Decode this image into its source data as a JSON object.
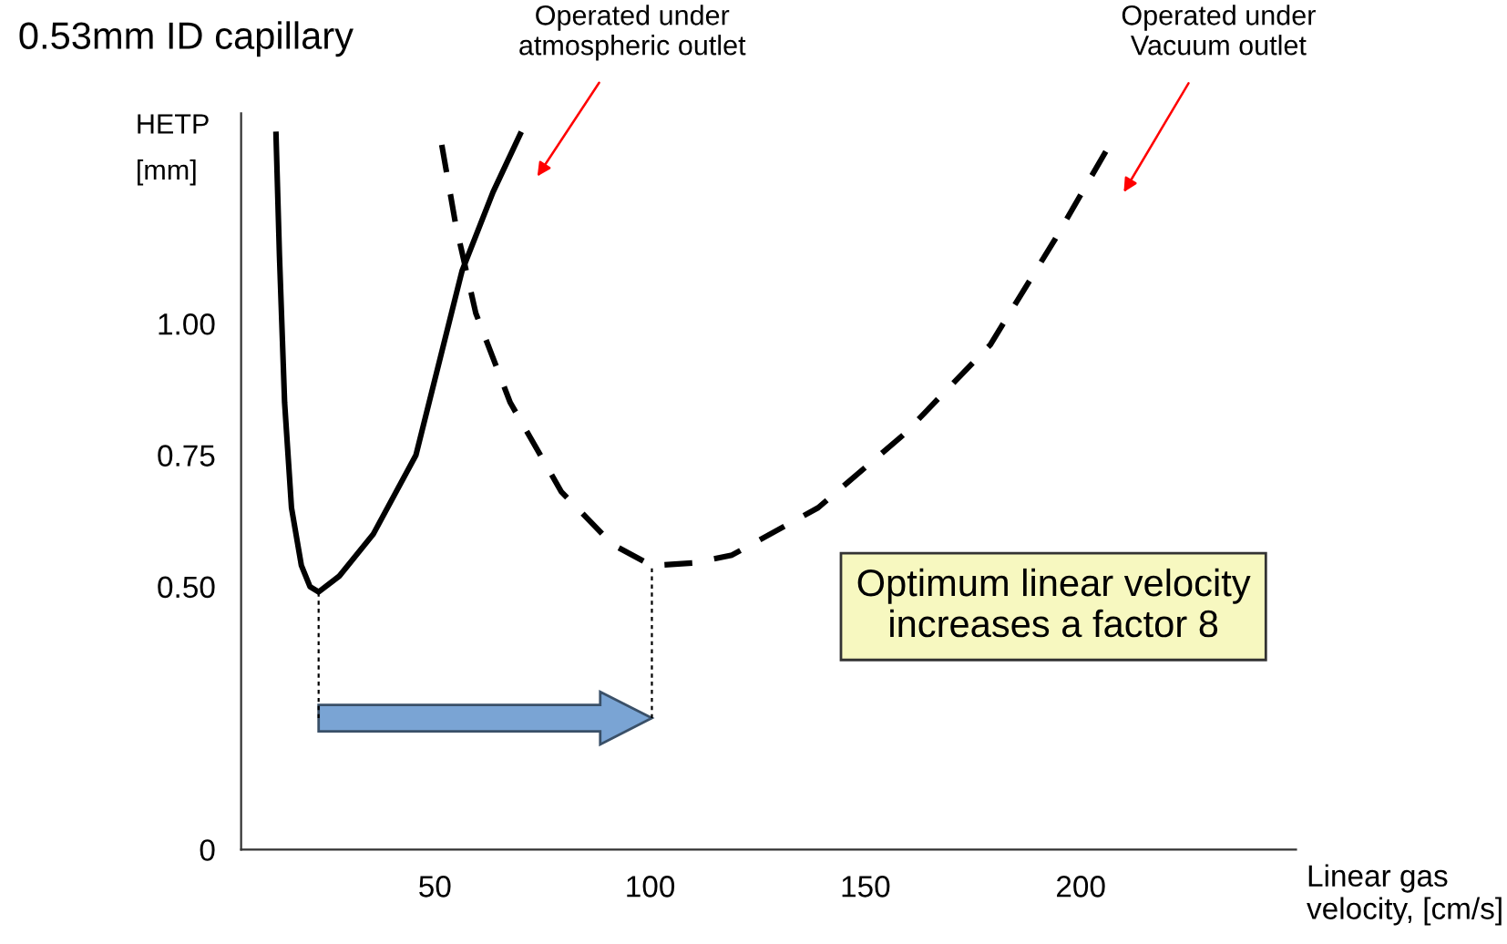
{
  "chart_data": {
    "type": "line",
    "title": "0.53mm ID capillary",
    "ylabel": "HETP\n[mm]",
    "xlabel": "Linear gas\nvelocity, [cm/s]",
    "series": [
      {
        "color": "#000000",
        "line_style": "solid",
        "x": [
          13.1,
          13.9,
          15.1,
          16.7,
          19,
          21,
          23,
          27.8,
          35.7,
          45.6,
          56.3,
          63.5,
          69.8
        ],
        "values": [
          1.36,
          1.13,
          0.85,
          0.65,
          0.54,
          0.5,
          0.49,
          0.52,
          0.6,
          0.75,
          1.1,
          1.25,
          1.36
        ]
      },
      {
        "color": "#000000",
        "line_style": "dashed",
        "x": [
          51.6,
          54.8,
          59.5,
          67.5,
          79.4,
          91.3,
          100.4,
          110,
          119,
          139,
          159,
          179,
          194,
          206
        ],
        "values": [
          1.34,
          1.19,
          1.02,
          0.85,
          0.68,
          0.58,
          0.54,
          0.545,
          0.56,
          0.65,
          0.79,
          0.96,
          1.16,
          1.33
        ]
      }
    ],
    "xlim": [
      5,
      250
    ],
    "ylim": [
      0,
      1.4
    ],
    "xticks": [
      50,
      100,
      150,
      200
    ],
    "yticks": [
      0,
      {
        "value": 0.5,
        "label": "0.50"
      },
      0.75,
      {
        "value": 1.0,
        "label": "1.00"
      }
    ],
    "grid": false,
    "legend": false,
    "annotations": [
      "Operated under\natmospheric outlet",
      "Operated under\nVacuum outlet",
      "Optimum linear velocity\nincreases a factor 8"
    ]
  }
}
